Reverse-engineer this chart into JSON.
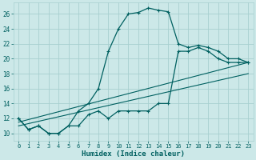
{
  "xlabel": "Humidex (Indice chaleur)",
  "bg_color": "#cce8e8",
  "grid_color": "#a8d0d0",
  "line_color": "#006060",
  "xlim": [
    -0.5,
    23.5
  ],
  "ylim": [
    9,
    27.5
  ],
  "xticks": [
    0,
    1,
    2,
    3,
    4,
    5,
    6,
    7,
    8,
    9,
    10,
    11,
    12,
    13,
    14,
    15,
    16,
    17,
    18,
    19,
    20,
    21,
    22,
    23
  ],
  "yticks": [
    10,
    12,
    14,
    16,
    18,
    20,
    22,
    24,
    26
  ],
  "curve1_x": [
    0,
    1,
    2,
    3,
    4,
    5,
    6,
    7,
    8,
    9,
    10,
    11,
    12,
    13,
    14,
    15,
    16,
    17,
    18,
    19,
    20,
    21,
    22,
    23
  ],
  "curve1_y": [
    12,
    10.5,
    11,
    10,
    10,
    11,
    13,
    14,
    16,
    21,
    24,
    26,
    26.2,
    26.8,
    26.5,
    26.3,
    22,
    21.5,
    21.8,
    21.5,
    21,
    20,
    20,
    19.5
  ],
  "curve2_x": [
    0,
    1,
    2,
    3,
    4,
    5,
    6,
    7,
    8,
    9,
    10,
    11,
    12,
    13,
    14,
    15,
    16,
    17,
    18,
    19,
    20,
    21,
    22,
    23
  ],
  "curve2_y": [
    12,
    10.5,
    11,
    10,
    10,
    11,
    11,
    12.5,
    13,
    12,
    13,
    13,
    13,
    13,
    14,
    14,
    21,
    21,
    21.5,
    21,
    20,
    19.5,
    19.5,
    19.5
  ],
  "line1_x": [
    0,
    23
  ],
  "line1_y": [
    11.5,
    19.5
  ],
  "line2_x": [
    0,
    23
  ],
  "line2_y": [
    11.0,
    18.0
  ],
  "marker_size": 2.5,
  "marker": "+"
}
